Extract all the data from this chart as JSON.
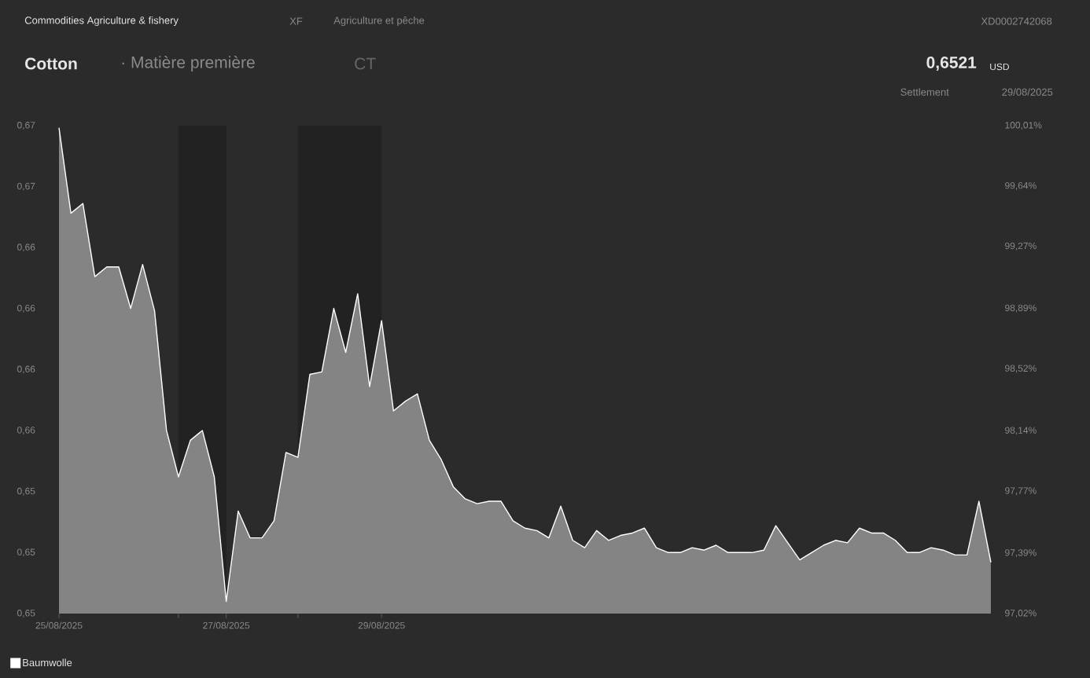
{
  "chart_data": {
    "type": "area",
    "title": "Cotton",
    "subtitle": "· Matière première",
    "annotations": [
      "Commodities Agriculture & fishery",
      "XF",
      "Agriculture et pêche",
      "XD0002742068",
      "CT",
      "0,6521",
      "USD",
      "Settlement",
      "29/08/2025"
    ],
    "categories": [
      "25/08/2025",
      null,
      null,
      null,
      null,
      null,
      null,
      null,
      null,
      null,
      null,
      null,
      null,
      null,
      "27/08/2025",
      null,
      null,
      null,
      null,
      null,
      null,
      null,
      null,
      null,
      null,
      null,
      null,
      "29/08/2025",
      null,
      null,
      null,
      null,
      null,
      null,
      null,
      null,
      null,
      null,
      null,
      null,
      null,
      null,
      null,
      null,
      null,
      null,
      null,
      null,
      null,
      null,
      null,
      null,
      null,
      null,
      null,
      null,
      null,
      null,
      null,
      null,
      null,
      null,
      null,
      null,
      null,
      null,
      null,
      null,
      null,
      null,
      null,
      null,
      null,
      null,
      null,
      null,
      null,
      null,
      null
    ],
    "series": [
      {
        "name": "Baumwolle",
        "color": "#ffffff",
        "axis": "y",
        "values": [
          0.6699,
          0.6664,
          0.6668,
          0.6638,
          0.6642,
          0.6642,
          0.6625,
          0.6643,
          0.6624,
          0.6575,
          0.6556,
          0.6571,
          0.6575,
          0.6556,
          0.6505,
          0.6542,
          0.6531,
          0.6531,
          0.6538,
          0.6566,
          0.6564,
          0.6598,
          0.6599,
          0.6625,
          0.6607,
          0.6631,
          0.6593,
          0.662,
          0.6583,
          0.6587,
          0.659,
          0.6571,
          0.6563,
          0.6552,
          0.6547,
          0.6545,
          0.6546,
          0.6546,
          0.6538,
          0.6535,
          0.6534,
          0.6531,
          0.6544,
          0.653,
          0.6527,
          0.6534,
          0.653,
          0.6532,
          0.6533,
          0.6535,
          0.6527,
          0.6525,
          0.6525,
          0.6527,
          0.6526,
          0.6528,
          0.6525,
          0.6525,
          0.6525,
          0.6526,
          0.6536,
          0.6529,
          0.6522,
          0.6525,
          0.6528,
          0.653,
          0.6529,
          0.6535,
          0.6533,
          0.6533,
          0.653,
          0.6525,
          0.6525,
          0.6527,
          0.6526,
          0.6524,
          0.6524,
          0.6546,
          0.6521
        ]
      }
    ],
    "ylim": [
      0.65,
      0.669984
    ],
    "yticks": [
      {
        "value": 0.65,
        "label": "0,65"
      },
      {
        "value": 0.652498,
        "label": "0,65"
      },
      {
        "value": 0.654996,
        "label": "0,65"
      },
      {
        "value": 0.657494,
        "label": "0,66"
      },
      {
        "value": 0.659992,
        "label": "0,66"
      },
      {
        "value": 0.66249,
        "label": "0,66"
      },
      {
        "value": 0.664988,
        "label": "0,66"
      },
      {
        "value": 0.667486,
        "label": "0,67"
      },
      {
        "value": 0.669984,
        "label": "0,67"
      }
    ],
    "y2lim": [
      97.02,
      100.01
    ],
    "y2ticks": [
      {
        "value": 97.02,
        "label": "97,02%"
      },
      {
        "value": 97.39,
        "label": "97,39%"
      },
      {
        "value": 97.77,
        "label": "97,77%"
      },
      {
        "value": 98.14,
        "label": "98,14%"
      },
      {
        "value": 98.52,
        "label": "98,52%"
      },
      {
        "value": 98.89,
        "label": "98,89%"
      },
      {
        "value": 99.27,
        "label": "99,27%"
      },
      {
        "value": 99.64,
        "label": "99,64%"
      },
      {
        "value": 100.01,
        "label": "100,01%"
      }
    ],
    "legend": "bottom left"
  }
}
